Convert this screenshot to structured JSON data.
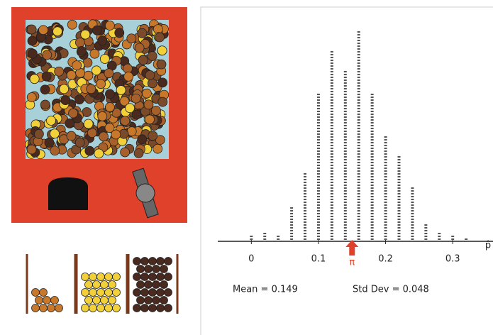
{
  "chart_data": {
    "type": "dotplot",
    "x": [
      0,
      0.02,
      0.04,
      0.06,
      0.08,
      0.1,
      0.12,
      0.14,
      0.16,
      0.18,
      0.2,
      0.22,
      0.24,
      0.26,
      0.28,
      0.3,
      0.32
    ],
    "values": [
      2,
      3,
      2,
      12,
      24,
      52,
      67,
      60,
      74,
      52,
      37,
      30,
      19,
      6,
      3,
      2,
      1
    ],
    "color": "#555555",
    "xlim": [
      -0.05,
      0.36
    ],
    "xticks": [
      0,
      0.1,
      0.2,
      0.3
    ],
    "xlabel": "p̂",
    "marker": {
      "label": "π",
      "x": 0.15,
      "color": "#e0412b"
    },
    "annotations": [
      "Mean = 0.149",
      "Std Dev = 0.048"
    ]
  }
}
